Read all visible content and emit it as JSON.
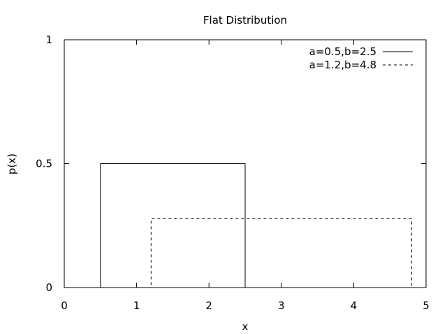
{
  "chart_data": {
    "type": "line",
    "title": "Flat Distribution",
    "xlabel": "x",
    "ylabel": "p(x)",
    "xlim": [
      0,
      5
    ],
    "ylim": [
      0,
      1
    ],
    "xticks": [
      "0",
      "1",
      "2",
      "3",
      "4",
      "5"
    ],
    "yticks": [
      "0",
      "0.5",
      "1"
    ],
    "grid": false,
    "legend_position": "top-right",
    "series": [
      {
        "name": "a=0.5,b=2.5",
        "style": "solid",
        "color": "#000000",
        "x": [
          0,
          0.5,
          0.5,
          2.5,
          2.5,
          5
        ],
        "y": [
          0,
          0,
          0.5,
          0.5,
          0,
          0
        ]
      },
      {
        "name": "a=1.2,b=4.8",
        "style": "dashed",
        "color": "#000000",
        "x": [
          0,
          1.2,
          1.2,
          4.8,
          4.8,
          5
        ],
        "y": [
          0,
          0,
          0.2778,
          0.2778,
          0,
          0
        ]
      }
    ]
  }
}
